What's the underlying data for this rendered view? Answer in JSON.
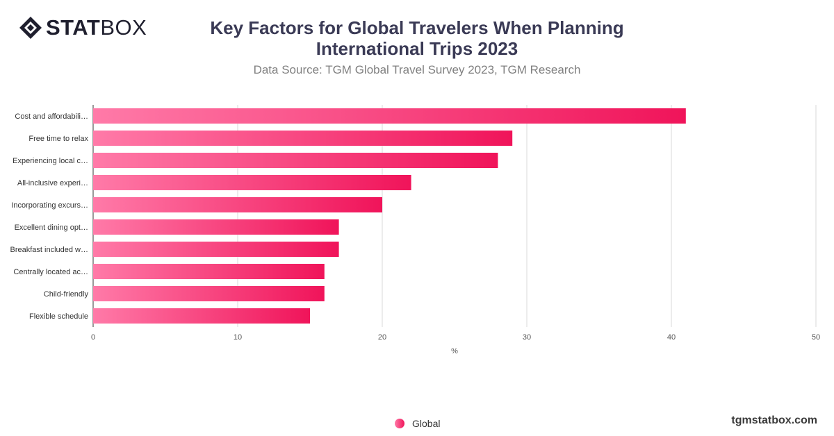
{
  "brand": {
    "logo_bold": "STAT",
    "logo_light": "BOX",
    "website": "tgmstatbox.com"
  },
  "header": {
    "title": "Key Factors for Global Travelers When Planning International Trips 2023",
    "subtitle": "Data Source: TGM Global Travel Survey 2023, TGM Research"
  },
  "colors": {
    "bar_start": "#ff7aa8",
    "bar_end": "#f0145a",
    "grid": "#d9d9d9",
    "axis": "#333333"
  },
  "chart_data": {
    "type": "bar",
    "orientation": "horizontal",
    "categories": [
      "Cost and affordabili…",
      "Free time to relax",
      "Experiencing local c…",
      "All-inclusive experi…",
      "Incorporating excurs…",
      "Excellent dining opt…",
      "Breakfast included w…",
      "Centrally located ac…",
      "Child-friendly",
      "Flexible schedule"
    ],
    "series": [
      {
        "name": "Global",
        "values": [
          41,
          29,
          28,
          22,
          20,
          17,
          17,
          16,
          16,
          15
        ]
      }
    ],
    "xlabel": "%",
    "xlim": [
      0,
      50
    ],
    "xticks": [
      0,
      10,
      20,
      30,
      40,
      50
    ],
    "grid": true,
    "legend_position": "bottom"
  }
}
